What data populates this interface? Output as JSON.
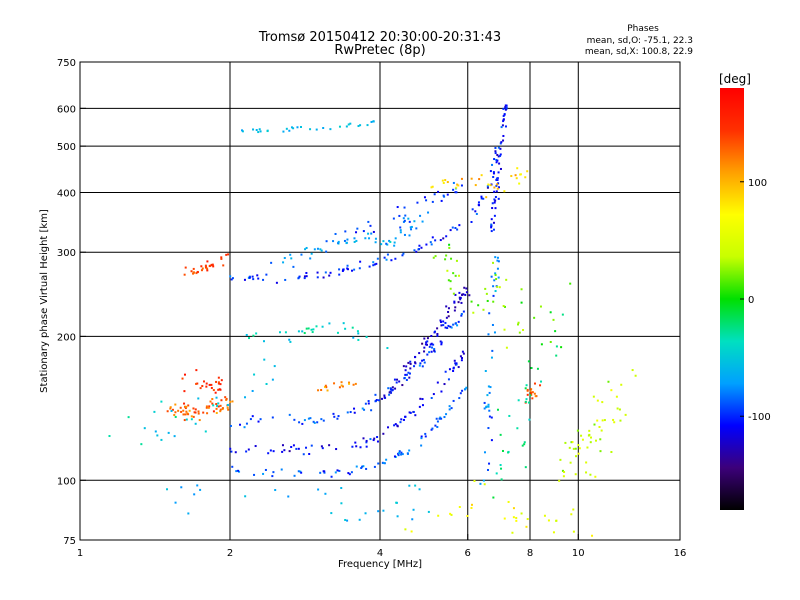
{
  "chart_data": {
    "type": "scatter",
    "title": "Tromsø 20150412 20:30:00-20:31:43",
    "subtitle": "RwPretec (8p)",
    "xlabel": "Frequency [MHz]",
    "ylabel": "Stationary phase Virtual Height [km]",
    "x_scale": "log",
    "y_scale": "log",
    "xlim": [
      1,
      16
    ],
    "ylim": [
      75,
      750
    ],
    "x_ticks": [
      1,
      2,
      4,
      6,
      8,
      10,
      16
    ],
    "y_ticks": [
      75,
      100,
      200,
      300,
      400,
      500,
      600,
      750
    ],
    "x_gridlines": [
      2,
      4,
      6,
      8,
      10
    ],
    "y_gridlines": [
      100,
      200,
      300,
      400,
      500,
      600
    ],
    "grid": true,
    "annotation": {
      "title": "Phases",
      "line1": "mean, sd,O: -75.1, 22.3",
      "line2": "mean, sd,X: 100.8, 22.9"
    },
    "colorbar": {
      "label": "[deg]",
      "range": [
        -180,
        180
      ],
      "ticks": [
        100,
        0,
        -100
      ],
      "colormap": [
        "#000000",
        "#3c007a",
        "#0000ff",
        "#00a0ff",
        "#00e0c0",
        "#00e000",
        "#c8ff00",
        "#ffff00",
        "#ffa000",
        "#ff3000",
        "#ff0000"
      ]
    },
    "clusters": [
      {
        "trace": [
          [
            2.02,
            132
          ],
          [
            2.3,
            134
          ],
          [
            2.9,
            133
          ],
          [
            3.4,
            137
          ],
          [
            3.8,
            143
          ],
          [
            4.1,
            152
          ],
          [
            4.5,
            165
          ],
          [
            5.0,
            182
          ],
          [
            5.5,
            205
          ],
          [
            5.9,
            225
          ]
        ],
        "phase": -95,
        "count": 90,
        "spread": 0.04
      },
      {
        "trace": [
          [
            2.02,
            117
          ],
          [
            2.5,
            116
          ],
          [
            3.0,
            116
          ],
          [
            3.5,
            117
          ],
          [
            4.0,
            123
          ],
          [
            4.5,
            133
          ],
          [
            5.0,
            148
          ],
          [
            5.5,
            165
          ],
          [
            5.9,
            185
          ]
        ],
        "phase": -110,
        "count": 80,
        "spread": 0.04
      },
      {
        "trace": [
          [
            2.02,
            105
          ],
          [
            2.5,
            104
          ],
          [
            3.0,
            103
          ],
          [
            3.5,
            104
          ],
          [
            4.0,
            108
          ],
          [
            4.5,
            115
          ],
          [
            5.0,
            126
          ],
          [
            5.5,
            140
          ],
          [
            6.0,
            160
          ]
        ],
        "phase": -90,
        "count": 75,
        "spread": 0.03
      },
      {
        "trace": [
          [
            4.0,
            145
          ],
          [
            4.4,
            165
          ],
          [
            4.8,
            185
          ],
          [
            5.2,
            205
          ],
          [
            5.6,
            230
          ],
          [
            6.0,
            255
          ]
        ],
        "phase": -120,
        "count": 70,
        "spread": 0.05
      },
      {
        "trace": [
          [
            2.0,
            268
          ],
          [
            2.3,
            265
          ],
          [
            2.6,
            264
          ],
          [
            3.0,
            268
          ],
          [
            3.5,
            278
          ],
          [
            4.0,
            288
          ],
          [
            4.5,
            298
          ],
          [
            5.0,
            312
          ],
          [
            5.5,
            328
          ],
          [
            6.0,
            350
          ],
          [
            6.4,
            385
          ],
          [
            6.7,
            430
          ],
          [
            6.9,
            500
          ]
        ],
        "phase": -100,
        "count": 100,
        "spread": 0.03
      },
      {
        "trace": [
          [
            2.2,
            280
          ],
          [
            2.6,
            285
          ],
          [
            3.0,
            300
          ],
          [
            3.4,
            318
          ],
          [
            3.8,
            320
          ],
          [
            4.2,
            318
          ],
          [
            4.6,
            340
          ],
          [
            5.0,
            360
          ]
        ],
        "phase": -70,
        "count": 55,
        "spread": 0.05
      },
      {
        "trace": [
          [
            3.0,
            320
          ],
          [
            3.4,
            322
          ],
          [
            3.8,
            335
          ],
          [
            4.2,
            345
          ],
          [
            4.6,
            365
          ],
          [
            5.0,
            385
          ],
          [
            5.4,
            395
          ],
          [
            5.8,
            410
          ]
        ],
        "phase": -95,
        "count": 35,
        "spread": 0.06
      },
      {
        "trace": [
          [
            6.7,
            330
          ],
          [
            6.8,
            380
          ],
          [
            6.9,
            430
          ],
          [
            7.0,
            500
          ],
          [
            7.1,
            580
          ],
          [
            7.15,
            620
          ]
        ],
        "phase": -105,
        "count": 55,
        "spread": 0.03
      },
      {
        "trace": [
          [
            6.5,
            100
          ],
          [
            6.6,
            130
          ],
          [
            6.6,
            170
          ],
          [
            6.7,
            210
          ],
          [
            6.8,
            260
          ],
          [
            6.9,
            300
          ]
        ],
        "phase": -80,
        "count": 40,
        "spread": 0.05
      },
      {
        "trace": [
          [
            2.1,
            540
          ],
          [
            2.5,
            540
          ],
          [
            3.0,
            545
          ],
          [
            3.5,
            555
          ],
          [
            4.0,
            565
          ]
        ],
        "phase": -60,
        "count": 30,
        "spread": 0.02
      },
      {
        "trace": [
          [
            1.5,
            140
          ],
          [
            1.7,
            140
          ],
          [
            1.9,
            142
          ],
          [
            2.0,
            145
          ]
        ],
        "phase": 130,
        "count": 60,
        "spread": 0.06
      },
      {
        "trace": [
          [
            1.6,
            165
          ],
          [
            1.8,
            160
          ],
          [
            1.95,
            155
          ]
        ],
        "phase": 150,
        "count": 25,
        "spread": 0.07
      },
      {
        "trace": [
          [
            1.6,
            270
          ],
          [
            1.75,
            275
          ],
          [
            1.9,
            285
          ],
          [
            2.0,
            300
          ]
        ],
        "phase": 140,
        "count": 30,
        "spread": 0.04
      },
      {
        "trace": [
          [
            3.0,
            155
          ],
          [
            3.3,
            158
          ],
          [
            3.6,
            160
          ]
        ],
        "phase": 110,
        "count": 15,
        "spread": 0.03
      },
      {
        "trace": [
          [
            7.8,
            150
          ],
          [
            8.1,
            150
          ],
          [
            8.3,
            155
          ]
        ],
        "phase": 130,
        "count": 15,
        "spread": 0.06
      },
      {
        "trace": [
          [
            5.0,
            420
          ],
          [
            5.6,
            420
          ],
          [
            6.2,
            430
          ],
          [
            6.8,
            400
          ],
          [
            7.4,
            420
          ],
          [
            7.8,
            440
          ]
        ],
        "phase": 90,
        "count": 30,
        "spread": 0.07
      },
      {
        "trace": [
          [
            9.5,
            110
          ],
          [
            10.5,
            120
          ],
          [
            11.5,
            140
          ],
          [
            12.5,
            160
          ]
        ],
        "phase": 40,
        "count": 55,
        "spread": 0.2
      },
      {
        "trace": [
          [
            1.1,
            125
          ],
          [
            1.5,
            130
          ],
          [
            2.0,
            150
          ],
          [
            2.5,
            170
          ]
        ],
        "phase": -50,
        "count": 30,
        "spread": 0.15
      },
      {
        "trace": [
          [
            1.5,
            90
          ],
          [
            2.0,
            95
          ],
          [
            3.0,
            90
          ],
          [
            4.0,
            88
          ],
          [
            5.0,
            92
          ]
        ],
        "phase": -60,
        "count": 30,
        "spread": 0.15
      },
      {
        "trace": [
          [
            2.2,
            200
          ],
          [
            2.6,
            200
          ],
          [
            3.0,
            205
          ],
          [
            3.4,
            208
          ],
          [
            3.8,
            195
          ],
          [
            4.2,
            190
          ]
        ],
        "phase": -40,
        "count": 30,
        "spread": 0.06
      },
      {
        "trace": [
          [
            5.0,
            300
          ],
          [
            5.5,
            280
          ],
          [
            6.0,
            260
          ],
          [
            6.5,
            250
          ],
          [
            7.0,
            240
          ],
          [
            7.5,
            230
          ],
          [
            8.0,
            220
          ],
          [
            9.0,
            210
          ]
        ],
        "phase": 20,
        "count": 45,
        "spread": 0.25
      },
      {
        "trace": [
          [
            7.0,
            100
          ],
          [
            7.5,
            130
          ],
          [
            8.0,
            160
          ],
          [
            8.5,
            180
          ],
          [
            9.0,
            200
          ]
        ],
        "phase": -20,
        "count": 35,
        "spread": 0.22
      },
      {
        "trace": [
          [
            4.5,
            80
          ],
          [
            5.5,
            85
          ],
          [
            6.5,
            95
          ],
          [
            7.5,
            85
          ],
          [
            8.5,
            80
          ],
          [
            10.5,
            82
          ]
        ],
        "phase": 60,
        "count": 30,
        "spread": 0.12
      }
    ]
  }
}
